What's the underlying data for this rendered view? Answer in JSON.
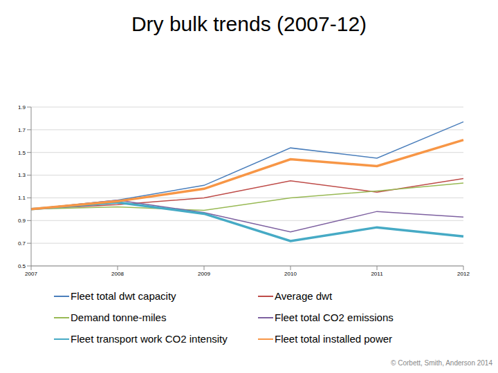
{
  "chart_data": {
    "type": "line",
    "title": "Dry bulk trends (2007-12)",
    "categories": [
      "2007",
      "2008",
      "2009",
      "2010",
      "2011",
      "2012"
    ],
    "series": [
      {
        "name": "Fleet total dwt capacity",
        "color": "#4a7ebb",
        "values": [
          1.0,
          1.08,
          1.21,
          1.54,
          1.45,
          1.77
        ]
      },
      {
        "name": "Average dwt",
        "color": "#be4b48",
        "values": [
          1.0,
          1.04,
          1.1,
          1.25,
          1.15,
          1.27
        ]
      },
      {
        "name": "Demand tonne-miles",
        "color": "#98b954",
        "values": [
          1.0,
          1.02,
          0.99,
          1.1,
          1.16,
          1.23
        ]
      },
      {
        "name": "Fleet total CO2 emissions",
        "color": "#7d60a0",
        "values": [
          1.0,
          1.08,
          0.97,
          0.8,
          0.98,
          0.93
        ]
      },
      {
        "name": "Fleet transport work CO2 intensity",
        "color": "#46aac5",
        "values": [
          1.0,
          1.06,
          0.96,
          0.72,
          0.84,
          0.76
        ]
      },
      {
        "name": "Fleet total installed power",
        "color": "#f79646",
        "values": [
          1.0,
          1.07,
          1.18,
          1.44,
          1.38,
          1.61
        ]
      }
    ],
    "ylim": [
      0.5,
      1.9
    ],
    "yticks": [
      0.5,
      0.7,
      0.9,
      1.1,
      1.3,
      1.5,
      1.7,
      1.9
    ],
    "grid": true,
    "legend": "bottom",
    "annotation": "© Corbett, Smith, Anderson 2014"
  }
}
